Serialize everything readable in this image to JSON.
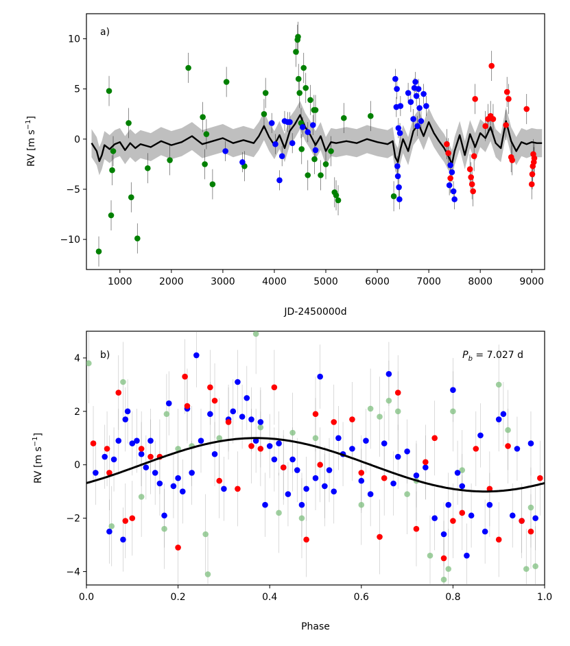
{
  "colors": {
    "green": "#008000",
    "blue": "#0000ff",
    "red": "#ff0000",
    "band": "#bfbfbf",
    "model": "#000000",
    "faded_green": "#7fbf7f"
  },
  "chart_data": [
    {
      "type": "scatter",
      "panel_label": "a)",
      "xlabel": "JD-2450000d",
      "ylabel_main": "RV [m s",
      "ylabel_exp": "−1",
      "ylabel_tail": "]",
      "xlim": [
        350,
        9250
      ],
      "ylim": [
        -13,
        12.5
      ],
      "xticks": [
        1000,
        2000,
        3000,
        4000,
        5000,
        6000,
        7000,
        8000,
        9000
      ],
      "yticks": [
        -10,
        -5,
        0,
        5,
        10
      ],
      "model_band_halfwidth": 1.4,
      "model_line": {
        "x": [
          450,
          550,
          600,
          650,
          700,
          800,
          900,
          1000,
          1100,
          1200,
          1300,
          1400,
          1600,
          1800,
          2000,
          2200,
          2400,
          2600,
          2800,
          3000,
          3200,
          3400,
          3600,
          3700,
          3800,
          3900,
          4000,
          4100,
          4200,
          4300,
          4400,
          4500,
          4600,
          4700,
          4800,
          4900,
          5000,
          5100,
          5200,
          5400,
          5600,
          5800,
          6000,
          6200,
          6300,
          6350,
          6400,
          6450,
          6500,
          6600,
          6700,
          6800,
          6900,
          7000,
          7100,
          7200,
          7300,
          7400,
          7450,
          7500,
          7600,
          7700,
          7800,
          7900,
          8000,
          8100,
          8200,
          8300,
          8400,
          8500,
          8600,
          8700,
          8800,
          8900,
          9000,
          9100,
          9200
        ],
        "y": [
          -0.4,
          -1.2,
          -2.2,
          -1.6,
          -0.6,
          -1.0,
          -0.5,
          -0.3,
          -1.1,
          -0.4,
          -0.9,
          -0.5,
          -0.8,
          -0.2,
          -0.6,
          -0.3,
          0.3,
          -0.5,
          -0.2,
          0.1,
          -0.4,
          -0.1,
          -0.4,
          0.3,
          1.3,
          0.2,
          -0.6,
          0.4,
          -0.9,
          0.8,
          1.5,
          2.4,
          1.2,
          0.4,
          -0.6,
          0.3,
          -1.2,
          -0.3,
          -0.4,
          -0.2,
          -0.4,
          0.0,
          -0.3,
          -0.5,
          -0.2,
          -1.8,
          -2.3,
          -1.0,
          0.0,
          -1.2,
          0.8,
          1.5,
          0.3,
          1.7,
          0.6,
          -0.2,
          -0.9,
          -1.9,
          -2.5,
          -1.2,
          0.4,
          -1.6,
          0.5,
          -0.8,
          0.6,
          0.1,
          1.2,
          -0.4,
          -0.9,
          1.8,
          -0.2,
          -1.2,
          -0.3,
          -0.5,
          -0.3,
          -0.4,
          -0.4
        ]
      },
      "series": [
        {
          "name": "green",
          "color": "#008000",
          "x": [
            590,
            790,
            830,
            850,
            870,
            1170,
            1220,
            1340,
            1540,
            1970,
            2330,
            2610,
            2650,
            2680,
            2800,
            3070,
            3420,
            3800,
            3830,
            4420,
            4450,
            4460,
            4470,
            4490,
            4520,
            4530,
            4570,
            4610,
            4650,
            4700,
            4770,
            4780,
            4800,
            4900,
            5000,
            5100,
            5170,
            5200,
            5240,
            5350,
            5870,
            6320
          ],
          "y": [
            -11.2,
            4.8,
            -7.6,
            -3.1,
            -1.2,
            1.6,
            -5.8,
            -9.9,
            -2.9,
            -2.1,
            7.1,
            2.2,
            -2.5,
            0.5,
            -4.5,
            5.7,
            -2.7,
            2.5,
            4.6,
            8.7,
            9.9,
            10.2,
            6.0,
            4.6,
            1.6,
            -1.0,
            7.1,
            5.1,
            -3.6,
            3.9,
            2.9,
            -2.0,
            2.9,
            -3.6,
            -2.5,
            -1.2,
            -5.3,
            -5.6,
            -6.1,
            2.1,
            2.3,
            -5.7
          ],
          "err": [
            1.5,
            1.5,
            1.5,
            1.5,
            1.5,
            1.5,
            1.5,
            1.5,
            1.5,
            1.5,
            1.5,
            1.5,
            1.5,
            1.5,
            1.5,
            1.5,
            1.5,
            1.5,
            1.5,
            1.5,
            1.5,
            1.5,
            1.5,
            1.5,
            1.5,
            1.5,
            1.5,
            1.5,
            1.5,
            1.5,
            1.5,
            1.5,
            1.5,
            1.5,
            1.5,
            1.5,
            1.5,
            1.5,
            1.5,
            1.5,
            1.5,
            1.5
          ]
        },
        {
          "name": "blue",
          "color": "#0000ff",
          "x": [
            3050,
            3380,
            3950,
            4020,
            4100,
            4150,
            4200,
            4260,
            4300,
            4350,
            4550,
            4650,
            4750,
            4800,
            6350,
            6370,
            6380,
            6390,
            6400,
            6410,
            6420,
            6430,
            6440,
            6450,
            6600,
            6650,
            6700,
            6720,
            6740,
            6760,
            6780,
            6800,
            6820,
            6850,
            6900,
            6950,
            7400,
            7420,
            7450,
            7480,
            7500
          ],
          "y": [
            -1.2,
            -2.3,
            1.6,
            -0.5,
            -4.1,
            -1.7,
            1.8,
            1.7,
            1.7,
            -0.4,
            1.2,
            0.7,
            1.4,
            -1.1,
            6.0,
            3.2,
            5.0,
            -2.7,
            -3.7,
            1.1,
            -4.8,
            -6.0,
            0.6,
            3.3,
            4.6,
            3.7,
            2.0,
            5.1,
            5.7,
            4.3,
            1.3,
            5.0,
            3.1,
            1.8,
            4.5,
            3.3,
            -4.6,
            -2.6,
            -3.3,
            -5.2,
            -6.0
          ],
          "err": [
            1.0,
            1.0,
            1.0,
            1.0,
            1.0,
            1.0,
            1.0,
            1.0,
            1.0,
            1.0,
            1.0,
            1.0,
            1.0,
            1.0,
            1.0,
            1.0,
            1.0,
            1.0,
            1.0,
            1.0,
            1.0,
            1.0,
            1.0,
            1.0,
            1.0,
            1.0,
            1.0,
            1.0,
            1.0,
            1.0,
            1.0,
            1.0,
            1.0,
            1.0,
            1.0,
            1.0,
            1.0,
            1.0,
            1.0,
            1.0,
            1.0
          ]
        },
        {
          "name": "red",
          "color": "#ff0000",
          "x": [
            7350,
            7380,
            7420,
            7800,
            7820,
            7840,
            7860,
            7880,
            7900,
            8100,
            8150,
            8200,
            8220,
            8250,
            8500,
            8520,
            8550,
            8600,
            8620,
            8900,
            9000,
            9010,
            9020,
            9030,
            9040,
            9050
          ],
          "y": [
            -0.5,
            -1.4,
            -3.9,
            -3.0,
            -3.8,
            -4.5,
            -5.2,
            -1.7,
            4.0,
            1.3,
            2.0,
            2.3,
            7.3,
            2.0,
            1.4,
            4.7,
            4.0,
            -1.8,
            -2.1,
            3.0,
            -4.5,
            -3.5,
            -2.7,
            -1.5,
            -2.3,
            -1.9
          ],
          "err": [
            1.5,
            1.5,
            1.5,
            1.5,
            1.5,
            1.5,
            1.5,
            1.5,
            1.5,
            1.5,
            1.5,
            1.5,
            1.5,
            1.5,
            1.5,
            1.5,
            1.5,
            1.5,
            1.5,
            1.5,
            1.5,
            1.5,
            1.5,
            1.5,
            1.5,
            1.5
          ]
        }
      ]
    },
    {
      "type": "scatter",
      "panel_label": "b)",
      "annotation_symbol": "P",
      "annotation_sub": "b",
      "annotation_value": " = 7.027 d",
      "xlabel": "Phase",
      "ylabel_main": "RV [m s",
      "ylabel_exp": "−1",
      "ylabel_tail": "]",
      "xlim": [
        0.0,
        1.0
      ],
      "ylim": [
        -4.5,
        5.0
      ],
      "xticks": [
        0.0,
        0.2,
        0.4,
        0.6,
        0.8,
        1.0
      ],
      "yticks": [
        -4,
        -2,
        0,
        2,
        4
      ],
      "model": {
        "type": "sinusoid",
        "amplitude": 1.0,
        "peak_phase": 0.37
      },
      "series": [
        {
          "name": "green (faded)",
          "color": "#7fbf7f",
          "x": [
            0.005,
            0.055,
            0.08,
            0.12,
            0.17,
            0.175,
            0.2,
            0.23,
            0.26,
            0.265,
            0.29,
            0.37,
            0.38,
            0.42,
            0.45,
            0.47,
            0.5,
            0.52,
            0.6,
            0.62,
            0.64,
            0.66,
            0.68,
            0.7,
            0.72,
            0.75,
            0.78,
            0.79,
            0.8,
            0.82,
            0.9,
            0.92,
            0.96,
            0.97,
            0.98
          ],
          "y": [
            3.8,
            -2.3,
            3.1,
            -1.2,
            -2.4,
            1.9,
            0.6,
            0.7,
            -2.6,
            -4.1,
            1.0,
            4.9,
            1.4,
            -1.8,
            1.2,
            -2.0,
            1.0,
            -0.8,
            -1.5,
            2.1,
            1.8,
            2.4,
            2.0,
            -1.1,
            -0.6,
            -3.4,
            -4.3,
            -3.9,
            2.0,
            -0.2,
            3.0,
            1.3,
            -3.9,
            -1.6,
            -3.8
          ],
          "err": [
            1.5,
            1.5,
            1.5,
            1.5,
            1.5,
            1.5,
            1.5,
            1.5,
            1.5,
            1.5,
            1.5,
            1.5,
            1.5,
            1.5,
            1.5,
            1.5,
            1.5,
            1.5,
            1.5,
            1.5,
            1.5,
            1.5,
            1.5,
            1.5,
            1.5,
            1.5,
            1.5,
            1.5,
            1.5,
            1.5,
            1.5,
            1.5,
            1.5,
            1.5,
            1.5
          ]
        },
        {
          "name": "blue",
          "color": "#0000ff",
          "x": [
            0.02,
            0.04,
            0.05,
            0.06,
            0.07,
            0.08,
            0.085,
            0.09,
            0.1,
            0.11,
            0.12,
            0.13,
            0.14,
            0.15,
            0.16,
            0.17,
            0.18,
            0.19,
            0.2,
            0.21,
            0.22,
            0.23,
            0.24,
            0.25,
            0.27,
            0.28,
            0.3,
            0.31,
            0.32,
            0.33,
            0.34,
            0.35,
            0.36,
            0.37,
            0.38,
            0.39,
            0.4,
            0.41,
            0.42,
            0.43,
            0.44,
            0.45,
            0.46,
            0.47,
            0.48,
            0.5,
            0.51,
            0.52,
            0.53,
            0.54,
            0.55,
            0.56,
            0.58,
            0.6,
            0.61,
            0.62,
            0.65,
            0.66,
            0.67,
            0.68,
            0.7,
            0.72,
            0.74,
            0.76,
            0.78,
            0.79,
            0.8,
            0.81,
            0.82,
            0.83,
            0.84,
            0.86,
            0.87,
            0.88,
            0.9,
            0.91,
            0.93,
            0.94,
            0.95,
            0.97,
            0.98
          ],
          "y": [
            -0.3,
            0.3,
            -2.5,
            0.2,
            0.9,
            -2.8,
            1.7,
            2.0,
            0.8,
            0.9,
            0.4,
            -0.1,
            0.9,
            -0.3,
            -0.7,
            -1.9,
            2.3,
            -0.8,
            -0.5,
            -1.0,
            2.1,
            -0.3,
            4.1,
            0.9,
            1.9,
            0.4,
            -0.9,
            1.7,
            2.0,
            3.1,
            1.8,
            2.5,
            1.7,
            0.9,
            1.6,
            -1.5,
            0.7,
            0.2,
            0.8,
            -0.1,
            -1.1,
            0.2,
            -0.2,
            -1.5,
            -0.9,
            -0.5,
            3.3,
            -0.8,
            -0.2,
            -1.0,
            1.0,
            0.4,
            0.6,
            -0.6,
            0.9,
            -1.1,
            0.8,
            3.4,
            -0.7,
            0.3,
            0.5,
            -0.4,
            -0.1,
            -2.0,
            -2.6,
            -1.5,
            2.8,
            -0.3,
            -0.8,
            -3.4,
            -1.9,
            1.1,
            -2.5,
            -1.5,
            1.7,
            1.9,
            -1.9,
            0.6,
            -2.1,
            0.8,
            -2.0
          ],
          "err": [
            1.2,
            1.2,
            1.2,
            1.2,
            1.2,
            1.2,
            1.2,
            1.2,
            1.2,
            1.2,
            1.2,
            1.2,
            1.2,
            1.2,
            1.2,
            1.2,
            1.2,
            1.2,
            1.2,
            1.2,
            1.2,
            1.2,
            1.2,
            1.2,
            1.2,
            1.2,
            1.2,
            1.2,
            1.2,
            1.2,
            1.2,
            1.2,
            1.2,
            1.2,
            1.2,
            1.2,
            1.2,
            1.2,
            1.2,
            1.2,
            1.2,
            1.2,
            1.2,
            1.2,
            1.2,
            1.2,
            1.2,
            1.2,
            1.2,
            1.2,
            1.2,
            1.2,
            1.2,
            1.2,
            1.2,
            1.2,
            1.2,
            1.2,
            1.2,
            1.2,
            1.2,
            1.2,
            1.2,
            1.2,
            1.2,
            1.2,
            1.2,
            1.2,
            1.2,
            1.2,
            1.2,
            1.2,
            1.2,
            1.2,
            1.2,
            1.2,
            1.2,
            1.2,
            1.2,
            1.2,
            1.2
          ]
        },
        {
          "name": "red",
          "color": "#ff0000",
          "x": [
            0.015,
            0.045,
            0.05,
            0.07,
            0.085,
            0.1,
            0.12,
            0.14,
            0.16,
            0.2,
            0.215,
            0.22,
            0.27,
            0.28,
            0.29,
            0.31,
            0.33,
            0.36,
            0.38,
            0.41,
            0.43,
            0.48,
            0.5,
            0.51,
            0.54,
            0.58,
            0.6,
            0.64,
            0.65,
            0.68,
            0.72,
            0.74,
            0.76,
            0.78,
            0.8,
            0.82,
            0.85,
            0.88,
            0.9,
            0.92,
            0.95,
            0.97,
            0.99
          ],
          "y": [
            0.8,
            0.6,
            -0.3,
            2.7,
            -2.1,
            -2.0,
            0.6,
            0.3,
            0.3,
            -3.1,
            3.3,
            2.2,
            2.9,
            2.4,
            -0.6,
            1.6,
            -0.9,
            0.7,
            0.6,
            2.9,
            -0.1,
            -2.8,
            1.9,
            0.0,
            1.6,
            1.7,
            -0.3,
            -2.7,
            -0.5,
            2.7,
            -2.4,
            0.1,
            1.0,
            -3.5,
            -2.1,
            -1.8,
            0.6,
            -0.9,
            -2.8,
            0.7,
            -2.1,
            -2.5,
            -0.5
          ],
          "err": [
            1.4,
            1.4,
            1.4,
            1.4,
            1.4,
            1.4,
            1.4,
            1.4,
            1.4,
            1.4,
            1.4,
            1.4,
            1.4,
            1.4,
            1.4,
            1.4,
            1.4,
            1.4,
            1.4,
            1.4,
            1.4,
            1.4,
            1.4,
            1.4,
            1.4,
            1.4,
            1.4,
            1.4,
            1.4,
            1.4,
            1.4,
            1.4,
            1.4,
            1.4,
            1.4,
            1.4,
            1.4,
            1.4,
            1.4,
            1.4,
            1.4,
            1.4,
            1.4
          ]
        }
      ]
    }
  ]
}
